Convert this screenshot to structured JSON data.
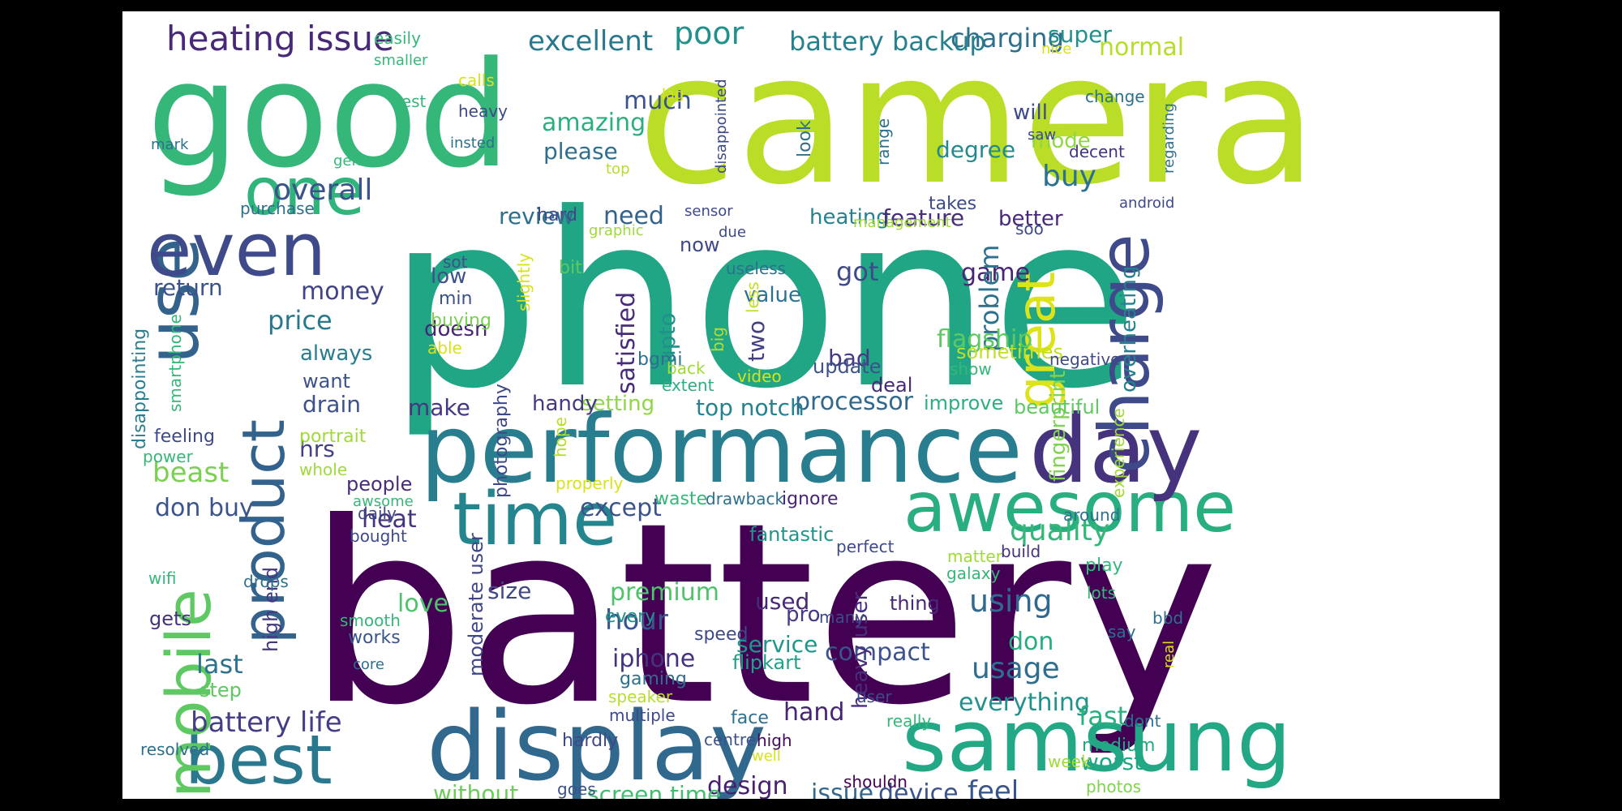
{
  "word_cloud": {
    "words": [
      {
        "text": "battery",
        "color": "#440154"
      },
      {
        "text": "phone",
        "color": "#21a685"
      },
      {
        "text": "camera",
        "color": "#bade28"
      },
      {
        "text": "good",
        "color": "#35b779"
      },
      {
        "text": "performance",
        "color": "#287d8e"
      },
      {
        "text": "display",
        "color": "#31688e"
      },
      {
        "text": "samsung",
        "color": "#22a884"
      },
      {
        "text": "awesome",
        "color": "#29af7f"
      },
      {
        "text": "day",
        "color": "#46337e"
      },
      {
        "text": "use",
        "color": "#33638d"
      },
      {
        "text": "even",
        "color": "#3e4a89"
      },
      {
        "text": "product",
        "color": "#33638d"
      },
      {
        "text": "time",
        "color": "#25858e"
      },
      {
        "text": "best",
        "color": "#2a788e"
      },
      {
        "text": "mobile",
        "color": "#5ec962"
      },
      {
        "text": "charge",
        "color": "#3e4a89"
      },
      {
        "text": "great",
        "color": "#dde318"
      },
      {
        "text": "one",
        "color": "#2fb47c"
      },
      {
        "text": "heating issue",
        "color": "#482878"
      },
      {
        "text": "excellent",
        "color": "#2a788e"
      },
      {
        "text": "poor",
        "color": "#21918c"
      },
      {
        "text": "battery backup",
        "color": "#27808e"
      },
      {
        "text": "charging",
        "color": "#2d708e"
      },
      {
        "text": "super",
        "color": "#21918c"
      },
      {
        "text": "normal",
        "color": "#b5de2b"
      },
      {
        "text": "overall",
        "color": "#3b528b"
      },
      {
        "text": "amazing",
        "color": "#2ab07f"
      },
      {
        "text": "much",
        "color": "#3b528b"
      },
      {
        "text": "will",
        "color": "#3e4989"
      },
      {
        "text": "mode",
        "color": "#90d743"
      },
      {
        "text": "degree",
        "color": "#23898e"
      },
      {
        "text": "buy",
        "color": "#2c728e"
      },
      {
        "text": "please",
        "color": "#2e6e8e"
      },
      {
        "text": "heating",
        "color": "#26828e"
      },
      {
        "text": "feature",
        "color": "#472d7b"
      },
      {
        "text": "better",
        "color": "#482878"
      },
      {
        "text": "need",
        "color": "#33638d"
      },
      {
        "text": "review",
        "color": "#2d708e"
      },
      {
        "text": "money",
        "color": "#414487"
      },
      {
        "text": "price",
        "color": "#2a788e"
      },
      {
        "text": "return",
        "color": "#3b528b"
      },
      {
        "text": "always",
        "color": "#287d8e"
      },
      {
        "text": "got",
        "color": "#3e4a89"
      },
      {
        "text": "game",
        "color": "#482475"
      },
      {
        "text": "value",
        "color": "#2c728e"
      },
      {
        "text": "problem",
        "color": "#2c728e"
      },
      {
        "text": "flagship",
        "color": "#5ec962"
      },
      {
        "text": "bad",
        "color": "#443983"
      },
      {
        "text": "satisfied",
        "color": "#472c7a"
      },
      {
        "text": "processor",
        "color": "#31688e"
      },
      {
        "text": "top notch",
        "color": "#26828e"
      },
      {
        "text": "setting",
        "color": "#8fd744"
      },
      {
        "text": "make",
        "color": "#453781"
      },
      {
        "text": "handy",
        "color": "#443983"
      },
      {
        "text": "drain",
        "color": "#3b528b"
      },
      {
        "text": "hrs",
        "color": "#424086"
      },
      {
        "text": "beast",
        "color": "#7ad151"
      },
      {
        "text": "don buy",
        "color": "#3a548c"
      },
      {
        "text": "heat",
        "color": "#46327e"
      },
      {
        "text": "except",
        "color": "#3b528b"
      },
      {
        "text": "quality",
        "color": "#35b779"
      },
      {
        "text": "fingerprint",
        "color": "#7fd34e"
      },
      {
        "text": "overheating",
        "color": "#27808e"
      },
      {
        "text": "premium",
        "color": "#4ec36b"
      },
      {
        "text": "hour",
        "color": "#3a548c"
      },
      {
        "text": "using",
        "color": "#31688e"
      },
      {
        "text": "used",
        "color": "#482878"
      },
      {
        "text": "pro",
        "color": "#443983"
      },
      {
        "text": "iphone",
        "color": "#46327e"
      },
      {
        "text": "last",
        "color": "#2c728e"
      },
      {
        "text": "love",
        "color": "#4ec36b"
      },
      {
        "text": "size",
        "color": "#3e4989"
      },
      {
        "text": "compact",
        "color": "#3b528b"
      },
      {
        "text": "usage",
        "color": "#2e6e8e"
      },
      {
        "text": "don",
        "color": "#27ad81"
      },
      {
        "text": "service",
        "color": "#1f968b"
      },
      {
        "text": "flipkart",
        "color": "#1fa088"
      },
      {
        "text": "battery life",
        "color": "#433e85"
      },
      {
        "text": "hand",
        "color": "#482475"
      },
      {
        "text": "everything",
        "color": "#21918c"
      },
      {
        "text": "fast",
        "color": "#2ab07f"
      },
      {
        "text": "design",
        "color": "#481f70"
      },
      {
        "text": "issue",
        "color": "#31688e"
      },
      {
        "text": "device",
        "color": "#3b528b"
      },
      {
        "text": "feel",
        "color": "#39568c"
      },
      {
        "text": "worst",
        "color": "#21a685"
      },
      {
        "text": "without",
        "color": "#6ccd5a"
      },
      {
        "text": "screen time",
        "color": "#42be71"
      },
      {
        "text": "heavy user",
        "color": "#472f7d"
      },
      {
        "text": "moderate user",
        "color": "#404688"
      },
      {
        "text": "high end",
        "color": "#453781"
      },
      {
        "text": "upto",
        "color": "#21918c"
      },
      {
        "text": "two",
        "color": "#423f85"
      },
      {
        "text": "fantastic",
        "color": "#1f968b"
      },
      {
        "text": "gaming",
        "color": "#2d708e"
      },
      {
        "text": "speed",
        "color": "#3e4989"
      },
      {
        "text": "every",
        "color": "#21918c"
      },
      {
        "text": "works",
        "color": "#39568c"
      },
      {
        "text": "step",
        "color": "#5ec962"
      },
      {
        "text": "hardly",
        "color": "#3e4989"
      },
      {
        "text": "centre",
        "color": "#3b528b"
      },
      {
        "text": "high",
        "color": "#460a5d"
      },
      {
        "text": "medium",
        "color": "#22a884"
      },
      {
        "text": "photos",
        "color": "#7fd34e"
      },
      {
        "text": "goes",
        "color": "#3b528b"
      },
      {
        "text": "people",
        "color": "#472d7b"
      },
      {
        "text": "daily",
        "color": "#3e4989"
      },
      {
        "text": "bought",
        "color": "#3e4989"
      },
      {
        "text": "gets",
        "color": "#46327e"
      },
      {
        "text": "beautiful",
        "color": "#5ec962"
      },
      {
        "text": "improve",
        "color": "#2ab07f"
      },
      {
        "text": "deal",
        "color": "#482878"
      },
      {
        "text": "update",
        "color": "#3b528b"
      },
      {
        "text": "sometimes",
        "color": "#c2df23"
      },
      {
        "text": "photography",
        "color": "#3e4989"
      },
      {
        "text": "doesn",
        "color": "#482475"
      },
      {
        "text": "low",
        "color": "#3b528b"
      },
      {
        "text": "want",
        "color": "#3b528b"
      },
      {
        "text": "buying",
        "color": "#7ad151"
      },
      {
        "text": "min",
        "color": "#3b528b"
      },
      {
        "text": "sot",
        "color": "#3b528b"
      },
      {
        "text": "able",
        "color": "#d8e219"
      },
      {
        "text": "slightly",
        "color": "#d8e219"
      },
      {
        "text": "bgmi",
        "color": "#2d708e"
      },
      {
        "text": "bit",
        "color": "#5ec962"
      },
      {
        "text": "hard",
        "color": "#3e4989"
      },
      {
        "text": "now",
        "color": "#3e4989"
      },
      {
        "text": "useless",
        "color": "#2d708e"
      },
      {
        "text": "big",
        "color": "#b5de2b"
      },
      {
        "text": "less",
        "color": "#c2df23"
      },
      {
        "text": "video",
        "color": "#d8e219"
      },
      {
        "text": "back",
        "color": "#a0da39"
      },
      {
        "text": "extent",
        "color": "#2ab07f"
      },
      {
        "text": "show",
        "color": "#35b779"
      },
      {
        "text": "negative",
        "color": "#3e4989"
      },
      {
        "text": "smartphone",
        "color": "#35b779"
      },
      {
        "text": "disappointing",
        "color": "#287d8e"
      },
      {
        "text": "feeling",
        "color": "#3e4989"
      },
      {
        "text": "power",
        "color": "#35b779"
      },
      {
        "text": "portrait",
        "color": "#a0da39"
      },
      {
        "text": "whole",
        "color": "#a0da39"
      },
      {
        "text": "hope",
        "color": "#b5de2b"
      },
      {
        "text": "properly",
        "color": "#d8e219"
      },
      {
        "text": "waste",
        "color": "#35b779"
      },
      {
        "text": "drawback",
        "color": "#2d708e"
      },
      {
        "text": "ignore",
        "color": "#482475"
      },
      {
        "text": "awsome",
        "color": "#35b779"
      },
      {
        "text": "perfect",
        "color": "#3e4989"
      },
      {
        "text": "matter",
        "color": "#a0da39"
      },
      {
        "text": "build",
        "color": "#46327e"
      },
      {
        "text": "galaxy",
        "color": "#35b779"
      },
      {
        "text": "around",
        "color": "#2d708e"
      },
      {
        "text": "experience",
        "color": "#a0da39"
      },
      {
        "text": "play",
        "color": "#35b779"
      },
      {
        "text": "lots",
        "color": "#35b779"
      },
      {
        "text": "wifi",
        "color": "#35b779"
      },
      {
        "text": "drops",
        "color": "#2d708e"
      },
      {
        "text": "smooth",
        "color": "#35b779"
      },
      {
        "text": "core",
        "color": "#2d708e"
      },
      {
        "text": "resolved",
        "color": "#2d708e"
      },
      {
        "text": "speaker",
        "color": "#b5de2b"
      },
      {
        "text": "multiple",
        "color": "#3e4989"
      },
      {
        "text": "face",
        "color": "#2d708e"
      },
      {
        "text": "thing",
        "color": "#482878"
      },
      {
        "text": "many",
        "color": "#3e4989"
      },
      {
        "text": "user",
        "color": "#3e4989"
      },
      {
        "text": "really",
        "color": "#35b779"
      },
      {
        "text": "well",
        "color": "#d8e219"
      },
      {
        "text": "shouldn",
        "color": "#440154"
      },
      {
        "text": "week",
        "color": "#a0da39"
      },
      {
        "text": "dont",
        "color": "#2d708e"
      },
      {
        "text": "say",
        "color": "#2d708e"
      },
      {
        "text": "bbd",
        "color": "#2d708e"
      },
      {
        "text": "real",
        "color": "#d8e219"
      },
      {
        "text": "easily",
        "color": "#35b779"
      },
      {
        "text": "smaller",
        "color": "#35b779"
      },
      {
        "text": "calls",
        "color": "#d8e219"
      },
      {
        "text": "rest",
        "color": "#35b779"
      },
      {
        "text": "heavy",
        "color": "#3e4989"
      },
      {
        "text": "insted",
        "color": "#2d708e"
      },
      {
        "text": "mark",
        "color": "#2d708e"
      },
      {
        "text": "gen",
        "color": "#35b779"
      },
      {
        "text": "purchase",
        "color": "#2d708e"
      },
      {
        "text": "disappointed",
        "color": "#3e4989"
      },
      {
        "text": "lag",
        "color": "#d8e219"
      },
      {
        "text": "top",
        "color": "#b5de2b"
      },
      {
        "text": "look",
        "color": "#2d708e"
      },
      {
        "text": "range",
        "color": "#2d708e"
      },
      {
        "text": "nice",
        "color": "#d8e219"
      },
      {
        "text": "saw",
        "color": "#3e4989"
      },
      {
        "text": "decent",
        "color": "#46327e"
      },
      {
        "text": "change",
        "color": "#2d708e"
      },
      {
        "text": "regarding",
        "color": "#2d708e"
      },
      {
        "text": "android",
        "color": "#3e4989"
      },
      {
        "text": "takes",
        "color": "#3e4989"
      },
      {
        "text": "sensor",
        "color": "#3e4989"
      },
      {
        "text": "management",
        "color": "#a0da39"
      },
      {
        "text": "soo",
        "color": "#3e4989"
      },
      {
        "text": "graphic",
        "color": "#a0da39"
      },
      {
        "text": "due",
        "color": "#3e4989"
      }
    ]
  }
}
